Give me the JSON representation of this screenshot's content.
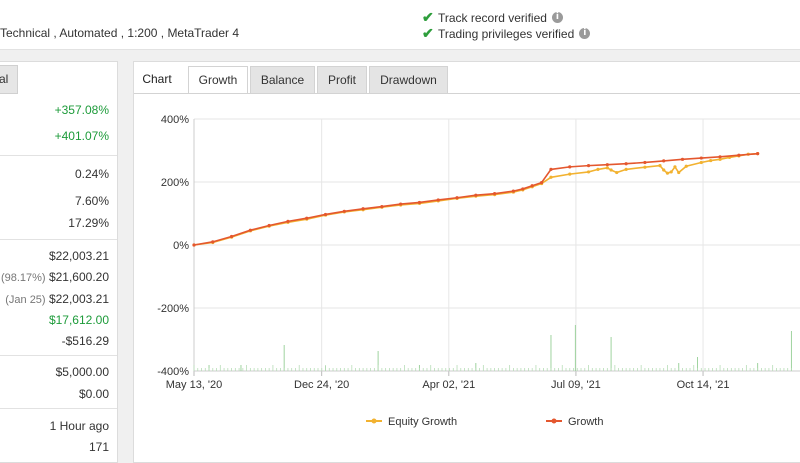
{
  "header": {
    "meta": "Technical , Automated , 1:200 , MetaTrader 4",
    "verifications": [
      {
        "label": "Track record verified"
      },
      {
        "label": "Trading privileges verified"
      }
    ],
    "info_glyph": "i"
  },
  "left_panel": {
    "tab_label": "al",
    "rows": [
      {
        "value": "+357.08%",
        "color": "#1d9b3a"
      },
      {
        "value": "+401.07%",
        "color": "#1d9b3a"
      },
      {
        "value": "0.24%"
      },
      {
        "value": "7.60%"
      },
      {
        "value": "17.29%"
      },
      {
        "value": "$22,003.21"
      },
      {
        "note": "(98.17%)",
        "value": "$21,600.20"
      },
      {
        "note": "(Jan 25)",
        "value": "$22,003.21"
      },
      {
        "value": "$17,612.00",
        "color": "#1d9b3a"
      },
      {
        "value": "-$516.29"
      },
      {
        "value": "$5,000.00"
      },
      {
        "value": "$0.00"
      },
      {
        "value": "1 Hour ago"
      },
      {
        "value": "171"
      }
    ]
  },
  "chart_panel": {
    "title": "Chart",
    "tabs": [
      {
        "label": "Growth",
        "active": true
      },
      {
        "label": "Balance"
      },
      {
        "label": "Profit"
      },
      {
        "label": "Drawdown"
      }
    ]
  },
  "chart_data": {
    "type": "line",
    "y_ticks": [
      "400%",
      "200%",
      "0%",
      "-200%",
      "-400%"
    ],
    "ylim": [
      -400,
      400
    ],
    "x_ticks": [
      "May 13, '20",
      "Dec 24, '20",
      "Apr 02, '21",
      "Jul 09, '21",
      "Oct 14, '21"
    ],
    "legend_position": "bottom",
    "series": [
      {
        "name": "Equity Growth",
        "color": "#f2b230",
        "x": [
          0,
          10,
          20,
          30,
          40,
          50,
          60,
          70,
          80,
          90,
          100,
          110,
          120,
          130,
          140,
          150,
          160,
          170,
          175,
          180,
          185,
          190,
          200,
          210,
          215,
          220,
          222,
          225,
          230,
          240,
          248,
          250,
          252,
          254,
          256,
          258,
          262,
          270,
          275,
          280,
          285,
          290,
          295,
          300
        ],
        "y": [
          0,
          8,
          25,
          45,
          60,
          72,
          82,
          95,
          105,
          112,
          120,
          127,
          132,
          140,
          148,
          155,
          160,
          168,
          175,
          185,
          195,
          215,
          225,
          232,
          240,
          245,
          238,
          230,
          240,
          247,
          252,
          238,
          228,
          232,
          248,
          230,
          250,
          262,
          268,
          272,
          278,
          283,
          288,
          290
        ]
      },
      {
        "name": "Growth",
        "color": "#e4572e",
        "x": [
          0,
          10,
          20,
          30,
          40,
          50,
          60,
          70,
          80,
          90,
          100,
          110,
          120,
          130,
          140,
          150,
          160,
          170,
          175,
          180,
          185,
          190,
          200,
          210,
          220,
          230,
          240,
          250,
          260,
          270,
          280,
          290,
          300
        ],
        "y": [
          0,
          10,
          27,
          47,
          62,
          75,
          85,
          97,
          107,
          115,
          122,
          130,
          135,
          143,
          150,
          158,
          163,
          171,
          178,
          188,
          198,
          240,
          248,
          252,
          255,
          258,
          262,
          267,
          272,
          276,
          280,
          285,
          290
        ]
      }
    ]
  }
}
